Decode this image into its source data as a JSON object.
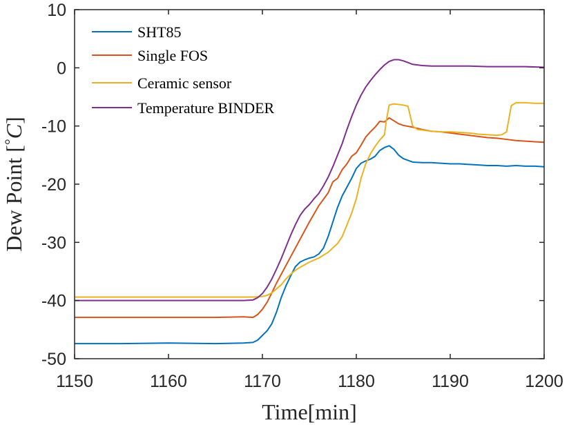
{
  "chart_data": {
    "type": "line",
    "xlabel": "Time[min]",
    "ylabel_text": "Dew Point ",
    "ylabel_unit_open": "[",
    "ylabel_unit_deg": "°",
    "ylabel_unit_c": "C",
    "ylabel_unit_close": "]",
    "xlim": [
      1150,
      1200
    ],
    "ylim": [
      -50,
      10
    ],
    "xticks": [
      1150,
      1160,
      1170,
      1180,
      1190,
      1200
    ],
    "yticks": [
      -50,
      -40,
      -30,
      -20,
      -10,
      0,
      10
    ],
    "grid": false,
    "legend_position": "top-left",
    "series": [
      {
        "name": "SHT85",
        "color": "#0072BD",
        "x": [
          1150,
          1155,
          1160,
          1165,
          1168,
          1169,
          1169.5,
          1170,
          1170.5,
          1171,
          1171.5,
          1172,
          1172.5,
          1173,
          1173.5,
          1174,
          1174.5,
          1175,
          1175.5,
          1176,
          1176.5,
          1177,
          1177.5,
          1178,
          1178.5,
          1179,
          1179.5,
          1180,
          1180.5,
          1181,
          1181.5,
          1182,
          1182.5,
          1183,
          1183.5,
          1184,
          1184.5,
          1185,
          1186,
          1187,
          1188,
          1189,
          1190,
          1191,
          1192,
          1193,
          1194,
          1195,
          1196,
          1197,
          1198,
          1199,
          1200
        ],
        "y": [
          -47.4,
          -47.4,
          -47.3,
          -47.4,
          -47.3,
          -47.2,
          -46.8,
          -46.0,
          -45.2,
          -44.0,
          -42.0,
          -39.5,
          -37.5,
          -35.8,
          -34.2,
          -33.4,
          -33.0,
          -32.7,
          -32.5,
          -32.0,
          -31.0,
          -29.0,
          -26.5,
          -24.0,
          -22.0,
          -20.5,
          -19.0,
          -17.3,
          -16.4,
          -16.0,
          -15.7,
          -15.2,
          -14.2,
          -13.7,
          -13.4,
          -14.0,
          -15.0,
          -15.6,
          -16.2,
          -16.3,
          -16.3,
          -16.4,
          -16.5,
          -16.5,
          -16.6,
          -16.7,
          -16.8,
          -16.8,
          -16.9,
          -16.8,
          -16.9,
          -16.9,
          -17.0
        ]
      },
      {
        "name": "Single FOS",
        "color": "#D95319",
        "x": [
          1150,
          1155,
          1160,
          1165,
          1168,
          1169,
          1169.5,
          1170,
          1170.5,
          1171,
          1171.5,
          1172,
          1172.5,
          1173,
          1174,
          1175,
          1176,
          1177,
          1177.5,
          1178,
          1178.5,
          1179,
          1179.5,
          1180,
          1180.5,
          1181,
          1181.5,
          1182,
          1182.5,
          1183,
          1183.5,
          1184,
          1184.5,
          1185,
          1186,
          1187,
          1188,
          1189,
          1190,
          1191,
          1192,
          1193,
          1194,
          1195,
          1196,
          1197,
          1198,
          1199,
          1200
        ],
        "y": [
          -42.9,
          -42.9,
          -42.9,
          -42.9,
          -42.8,
          -42.9,
          -42.4,
          -41.5,
          -40.3,
          -38.7,
          -37.0,
          -35.5,
          -34.0,
          -32.5,
          -29.5,
          -26.5,
          -23.7,
          -21.5,
          -19.6,
          -19.0,
          -17.5,
          -16.5,
          -15.2,
          -14.6,
          -13.3,
          -11.9,
          -11.0,
          -10.2,
          -9.2,
          -9.3,
          -8.6,
          -9.1,
          -9.6,
          -9.9,
          -10.2,
          -10.6,
          -10.9,
          -11.0,
          -11.2,
          -11.4,
          -11.6,
          -11.8,
          -12.0,
          -12.1,
          -12.3,
          -12.5,
          -12.6,
          -12.7,
          -12.8
        ]
      },
      {
        "name": "Ceramic sensor",
        "color": "#EDB120",
        "x": [
          1150,
          1155,
          1160,
          1165,
          1168,
          1169,
          1170,
          1170.5,
          1171,
          1171.5,
          1172,
          1172.5,
          1173,
          1173.5,
          1174,
          1175,
          1176,
          1177,
          1178,
          1178.5,
          1179,
          1179.5,
          1180,
          1180.5,
          1181,
          1181.5,
          1182,
          1182.5,
          1183,
          1183.2,
          1183.5,
          1184,
          1185,
          1185.5,
          1186,
          1186.5,
          1187,
          1188,
          1189,
          1190,
          1191,
          1192,
          1193,
          1194,
          1195,
          1195.5,
          1196,
          1196.5,
          1197,
          1198,
          1199,
          1200
        ],
        "y": [
          -39.4,
          -39.4,
          -39.4,
          -39.4,
          -39.4,
          -39.4,
          -39.3,
          -39.1,
          -38.7,
          -38.0,
          -37.3,
          -36.3,
          -35.5,
          -34.8,
          -34.3,
          -33.4,
          -32.7,
          -31.7,
          -30.2,
          -29.0,
          -27.0,
          -25.0,
          -22.5,
          -19.0,
          -16.5,
          -14.8,
          -13.5,
          -12.4,
          -11.5,
          -9.0,
          -6.4,
          -6.2,
          -6.4,
          -6.6,
          -10.0,
          -10.6,
          -10.7,
          -10.9,
          -11.0,
          -11.0,
          -11.1,
          -11.2,
          -11.4,
          -11.5,
          -11.6,
          -11.5,
          -11.0,
          -6.5,
          -6.0,
          -6.0,
          -6.1,
          -6.1
        ]
      },
      {
        "name": "Temperature BINDER",
        "color": "#7E2F8E",
        "x": [
          1150,
          1155,
          1160,
          1165,
          1168,
          1169,
          1169.5,
          1170,
          1170.5,
          1171,
          1171.5,
          1172,
          1172.5,
          1173,
          1173.5,
          1174,
          1174.5,
          1175,
          1175.5,
          1176,
          1176.5,
          1177,
          1177.5,
          1178,
          1178.5,
          1179,
          1179.5,
          1180,
          1180.5,
          1181,
          1181.5,
          1182,
          1182.5,
          1183,
          1183.5,
          1184,
          1184.5,
          1185,
          1185.5,
          1186,
          1187,
          1188,
          1190,
          1192,
          1194,
          1196,
          1198,
          1200
        ],
        "y": [
          -40.0,
          -40.0,
          -40.0,
          -40.0,
          -40.0,
          -39.9,
          -39.5,
          -38.8,
          -37.7,
          -36.3,
          -34.6,
          -32.8,
          -30.8,
          -28.8,
          -27.0,
          -25.4,
          -24.3,
          -23.5,
          -22.5,
          -21.6,
          -20.3,
          -18.8,
          -17.0,
          -15.0,
          -13.0,
          -10.6,
          -8.4,
          -6.4,
          -4.7,
          -3.3,
          -2.2,
          -1.2,
          -0.3,
          0.5,
          1.1,
          1.4,
          1.4,
          1.2,
          0.9,
          0.6,
          0.4,
          0.3,
          0.3,
          0.3,
          0.2,
          0.2,
          0.2,
          0.1
        ]
      }
    ]
  }
}
